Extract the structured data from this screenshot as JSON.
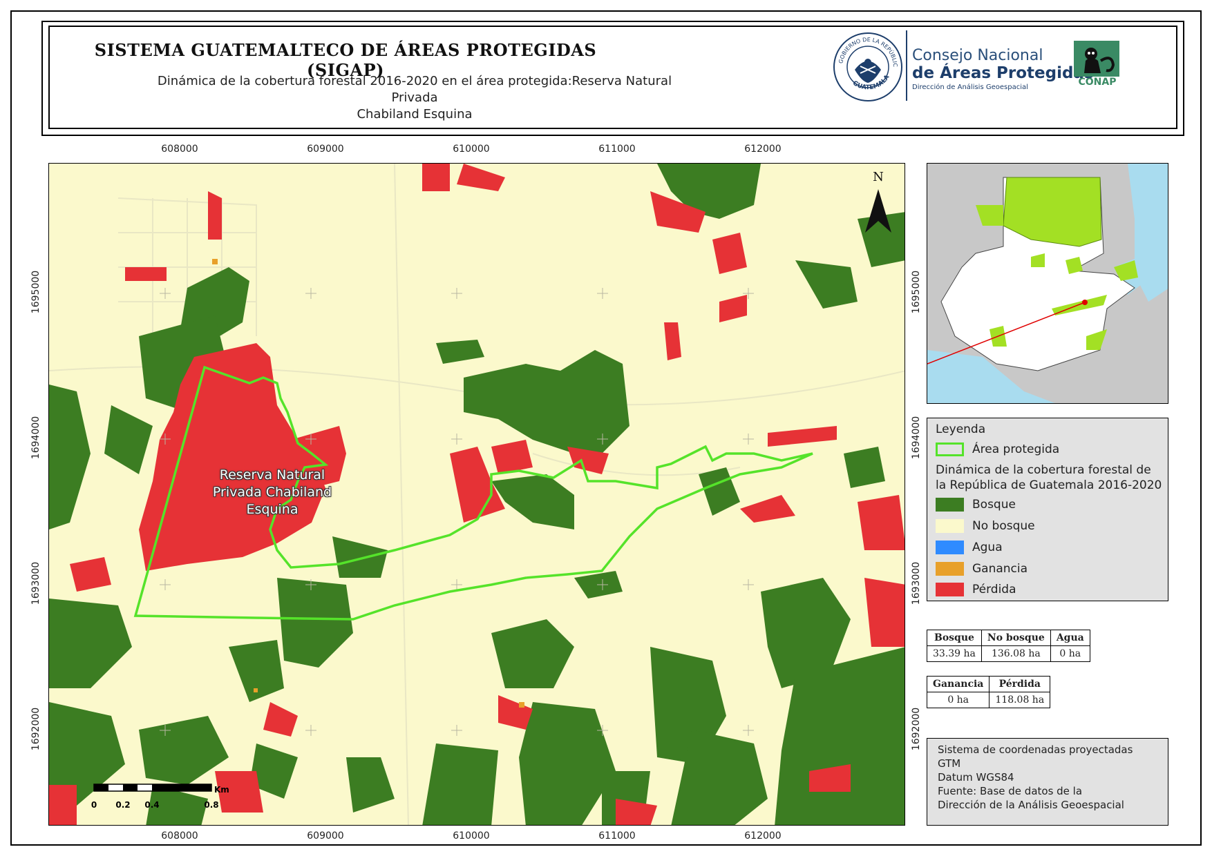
{
  "header": {
    "title": "SISTEMA GUATEMALTECO DE ÁREAS PROTEGIDAS  (SIGAP)",
    "subtitle_line1": "Dinámica de la cobertura forestal 2016-2020 en el área protegida:Reserva Natural Privada",
    "subtitle_line2": "Chabiland Esquina"
  },
  "logos": {
    "seal_top": "GOBIERNO DE LA REPÚBLICA",
    "seal_bottom": "GUATEMALA",
    "conap_line1": "Consejo Nacional",
    "conap_line2": "de Áreas Protegidas",
    "conap_line3": "Dirección de Análisis Geoespacial",
    "conap_short": "CONAP"
  },
  "map": {
    "x_ticks": [
      "608000",
      "609000",
      "610000",
      "611000",
      "612000"
    ],
    "y_ticks": [
      "1695000",
      "1694000",
      "1693000",
      "1692000"
    ],
    "area_label": [
      "Reserva Natural",
      "Privada Chabiland",
      "Esquina"
    ],
    "north_label": "N",
    "scale_unit": "Km",
    "scale_labels": [
      "0",
      "0.2",
      "0.4",
      "0.8"
    ]
  },
  "legend": {
    "title": "Leyenda",
    "protected_area": "Área protegida",
    "dynamics_title": "Dinámica de la cobertura forestal de la República de Guatemala 2016-2020",
    "items": [
      {
        "label": "Bosque",
        "color": "#3c7d22"
      },
      {
        "label": "No bosque",
        "color": "#fbf9cc"
      },
      {
        "label": "Agua",
        "color": "#2f8bff"
      },
      {
        "label": "Ganancia",
        "color": "#e8a02a"
      },
      {
        "label": "Pérdida",
        "color": "#e63236"
      }
    ],
    "protected_area_color": "#55e32a"
  },
  "stats1": {
    "headers": [
      "Bosque",
      "No bosque",
      "Agua"
    ],
    "values": [
      "33.39 ha",
      "136.08 ha",
      "0 ha"
    ]
  },
  "stats2": {
    "headers": [
      "Ganancia",
      "Pérdida"
    ],
    "values": [
      "0 ha",
      "118.08 ha"
    ]
  },
  "crs": {
    "line1": "Sistema de coordenadas proyectadas",
    "line2": "GTM",
    "line3": "Datum WGS84",
    "line4": "Fuente: Base de datos de la",
    "line5": "Dirección de la Análisis Geoespacial"
  }
}
